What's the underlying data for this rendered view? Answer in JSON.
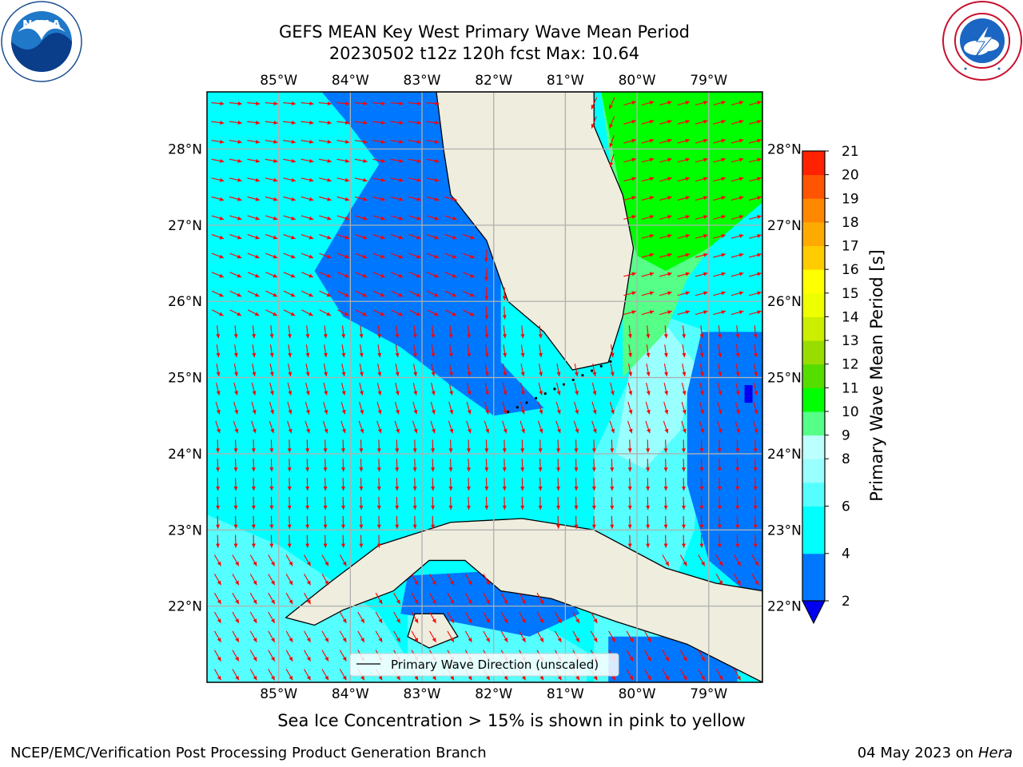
{
  "title_line1": "GEFS MEAN Key West Primary Wave Mean Period",
  "title_line2": "20230502 t12z 120h fcst   Max: 10.64",
  "logos": {
    "left": {
      "name": "noaa-logo",
      "text": "NOAA",
      "ring_text": "NATIONAL OCEANIC AND ATMOSPHERIC ADMINISTRATION · U.S. DEPARTMENT OF COMMERCE"
    },
    "right": {
      "name": "nws-logo",
      "ring_text": "NATIONAL WEATHER SERVICE"
    }
  },
  "map": {
    "lon_ticks": [
      "85°W",
      "84°W",
      "83°W",
      "82°W",
      "81°W",
      "80°W",
      "79°W"
    ],
    "lat_ticks": [
      "28°N",
      "27°N",
      "26°N",
      "25°N",
      "24°N",
      "23°N",
      "22°N"
    ],
    "extent": {
      "lon": [
        -86.0,
        -78.25
      ],
      "lat": [
        21.0,
        28.75
      ]
    },
    "legend_label": "Primary Wave Direction (unscaled)",
    "colors": {
      "land": "#EEEDDE",
      "arrow": "#FF0000",
      "grid": "#B0B0B0",
      "coast": "#000000"
    }
  },
  "colorbar": {
    "label": "Primary Wave Mean Period [s]",
    "levels": [
      "2",
      "4",
      "6",
      "7",
      "8",
      "9",
      "10",
      "11",
      "12",
      "13",
      "14",
      "15",
      "16",
      "17",
      "18",
      "19",
      "20",
      "21"
    ],
    "tick_labels": [
      "2",
      "4",
      "6",
      "8",
      "9",
      "10",
      "11",
      "12",
      "13",
      "14",
      "15",
      "16",
      "17",
      "18",
      "19",
      "20",
      "21"
    ],
    "colors": [
      "#0077FF",
      "#00FFFF",
      "#55FFFF",
      "#99FFFF",
      "#BBFFFF",
      "#55FF88",
      "#00FF00",
      "#55DD00",
      "#99DD00",
      "#CCEE00",
      "#EEFF00",
      "#FFFF00",
      "#FFCC00",
      "#FFAA00",
      "#FF8800",
      "#FF5500",
      "#FF2200",
      "#FF0000"
    ],
    "under_color": "#0000EE"
  },
  "subtitle": "Sea Ice Concentration > 15% is shown in pink to yellow",
  "footer_left": "NCEP/EMC/Verification Post Processing Product Generation Branch",
  "footer_date": "04 May 2023 on",
  "footer_machine": "Hera"
}
